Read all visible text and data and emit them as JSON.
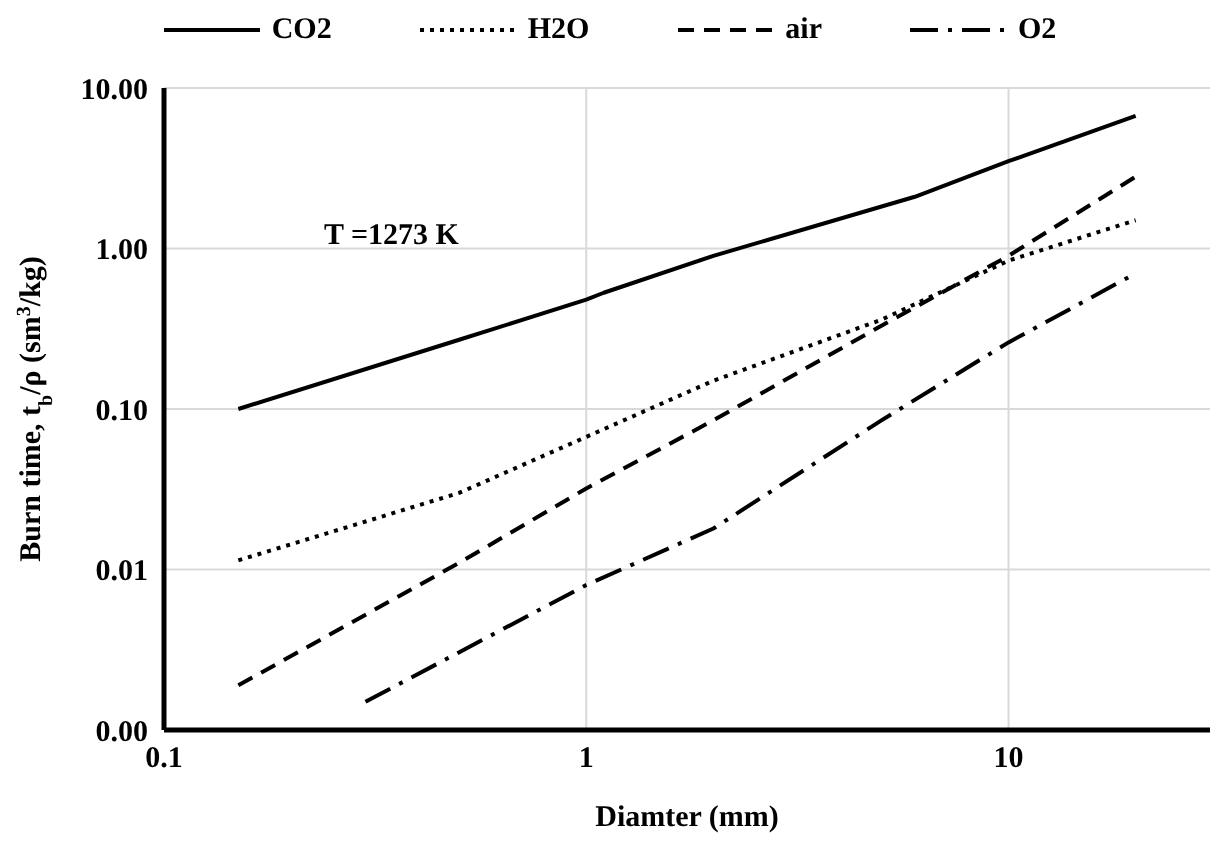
{
  "chart_data": {
    "type": "line",
    "xlabel": "Diamter (mm)",
    "ylabel": "Burn time, t$_{b}$/ρ (sm$^{3}$/kg)",
    "annotations": [
      "T =1273 K"
    ],
    "log": "xy",
    "xlim": [
      0.1,
      30
    ],
    "xticks": [
      0.1,
      1,
      10
    ],
    "ylim": [
      0.001,
      10
    ],
    "yticks": [
      {
        "value": 0.001,
        "label": "0.00"
      },
      {
        "value": 0.01,
        "label": "0.01"
      },
      {
        "value": 0.1,
        "label": "0.10"
      },
      {
        "value": 1,
        "label": "1.00"
      },
      {
        "value": 10,
        "label": "10.00"
      }
    ],
    "grid": true,
    "legend": "top",
    "marker": "none",
    "series": [
      {
        "name": "CO2",
        "color": "#000000",
        "line_style": "solid",
        "x": [
          0.15,
          0.5,
          1,
          1.1,
          2,
          6,
          10,
          20
        ],
        "values": [
          0.1,
          0.27,
          0.48,
          0.53,
          0.9,
          2.1,
          3.5,
          6.7
        ]
      },
      {
        "name": "H2O",
        "color": "#000000",
        "line_style": "dotted",
        "x": [
          0.15,
          0.5,
          1,
          2,
          5,
          10,
          20
        ],
        "values": [
          0.0114,
          0.03,
          0.067,
          0.15,
          0.36,
          0.84,
          1.5
        ]
      },
      {
        "name": "air",
        "color": "#000000",
        "line_style": "dashed",
        "x": [
          0.15,
          0.5,
          1,
          2,
          5,
          10,
          20
        ],
        "values": [
          0.0019,
          0.011,
          0.032,
          0.085,
          0.33,
          0.9,
          2.8
        ]
      },
      {
        "name": "O2",
        "color": "#000000",
        "line_style": "dashdot",
        "x": [
          0.3,
          1,
          2,
          5,
          10,
          20
        ],
        "values": [
          0.0015,
          0.008,
          0.018,
          0.085,
          0.26,
          0.7
        ]
      }
    ]
  }
}
